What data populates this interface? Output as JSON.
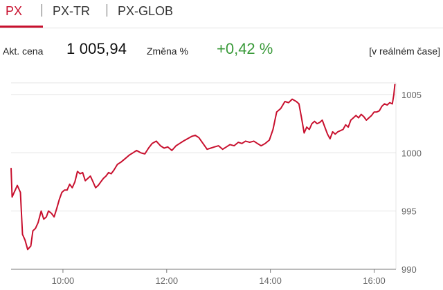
{
  "tabs": [
    {
      "label": "PX",
      "active": true
    },
    {
      "label": "PX-TR",
      "active": false
    },
    {
      "label": "PX-GLOB",
      "active": false
    }
  ],
  "quote": {
    "price_label": "Akt. cena",
    "price": "1 005,94",
    "change_label": "Změna %",
    "change": "+0,42 %",
    "realtime": "[v reálném čase]"
  },
  "colors": {
    "accent": "#c8102e",
    "positive": "#3a9a3a",
    "line": "#c8102e",
    "grid": "#e4e4e4"
  },
  "chart_data": {
    "type": "line",
    "y_ticks": [
      "1005",
      "1000",
      "995",
      "990"
    ],
    "x_ticks": [
      "10:00",
      "12:00",
      "14:00",
      "16:00"
    ],
    "ylim": [
      990,
      1006
    ],
    "xlim": [
      9.0,
      16.42
    ],
    "grid": "horizontal",
    "series": [
      {
        "x": [
          9.0,
          9.02,
          9.05,
          9.08,
          9.12,
          9.18,
          9.22,
          9.27,
          9.32,
          9.38,
          9.42,
          9.47,
          9.52,
          9.58,
          9.63,
          9.68,
          9.72,
          9.78,
          9.83,
          9.88,
          9.93,
          9.98,
          10.03,
          10.08,
          10.13,
          10.18,
          10.23,
          10.28,
          10.33,
          10.38,
          10.43,
          10.48,
          10.53,
          10.58,
          10.63,
          10.68,
          10.73,
          10.78,
          10.83,
          10.88,
          10.93,
          10.98,
          11.05,
          11.12,
          11.2,
          11.28,
          11.35,
          11.42,
          11.5,
          11.58,
          11.65,
          11.72,
          11.8,
          11.88,
          11.95,
          12.02,
          12.1,
          12.18,
          12.25,
          12.32,
          12.4,
          12.48,
          12.55,
          12.62,
          12.7,
          12.78,
          12.85,
          12.92,
          13.0,
          13.08,
          13.15,
          13.22,
          13.3,
          13.38,
          13.45,
          13.52,
          13.6,
          13.68,
          13.75,
          13.82,
          13.9,
          13.98,
          14.05,
          14.12,
          14.2,
          14.28,
          14.35,
          14.42,
          14.5,
          14.55,
          14.6,
          14.65,
          14.7,
          14.75,
          14.8,
          14.85,
          14.9,
          14.95,
          15.0,
          15.05,
          15.1,
          15.15,
          15.2,
          15.25,
          15.3,
          15.35,
          15.4,
          15.45,
          15.5,
          15.55,
          15.6,
          15.65,
          15.7,
          15.75,
          15.8,
          15.85,
          15.9,
          15.95,
          16.0,
          16.05,
          16.1,
          16.15,
          16.2,
          16.25,
          16.3,
          16.35,
          16.38,
          16.4
        ],
        "values": [
          998.7,
          996.2,
          996.5,
          996.8,
          997.2,
          996.6,
          993.0,
          992.5,
          991.7,
          992.0,
          993.3,
          993.5,
          994.0,
          995.0,
          994.3,
          994.5,
          995.0,
          994.8,
          994.5,
          995.2,
          996.0,
          996.6,
          996.8,
          996.8,
          997.3,
          997.0,
          997.5,
          998.4,
          998.2,
          998.3,
          997.6,
          997.8,
          998.0,
          997.5,
          997.0,
          997.2,
          997.5,
          997.8,
          998.0,
          998.3,
          998.2,
          998.5,
          999.0,
          999.2,
          999.5,
          999.8,
          1000.0,
          1000.2,
          1000.0,
          999.9,
          1000.4,
          1000.8,
          1001.0,
          1000.6,
          1000.4,
          1000.5,
          1000.2,
          1000.6,
          1000.8,
          1001.0,
          1001.2,
          1001.4,
          1001.5,
          1001.3,
          1000.8,
          1000.3,
          1000.4,
          1000.5,
          1000.6,
          1000.3,
          1000.5,
          1000.7,
          1000.6,
          1000.9,
          1000.8,
          1001.0,
          1000.9,
          1001.0,
          1000.8,
          1000.6,
          1000.8,
          1001.1,
          1002.0,
          1003.5,
          1003.8,
          1004.4,
          1004.3,
          1004.6,
          1004.4,
          1004.2,
          1003.0,
          1001.7,
          1002.2,
          1002.0,
          1002.5,
          1002.7,
          1002.5,
          1002.6,
          1002.8,
          1002.2,
          1001.6,
          1001.2,
          1001.8,
          1001.6,
          1001.8,
          1001.9,
          1002.0,
          1002.4,
          1002.2,
          1002.8,
          1003.0,
          1003.2,
          1003.0,
          1003.3,
          1003.1,
          1002.8,
          1003.0,
          1003.2,
          1003.5,
          1003.5,
          1003.6,
          1004.0,
          1004.2,
          1004.1,
          1004.3,
          1004.2,
          1005.0,
          1005.9
        ]
      }
    ]
  }
}
